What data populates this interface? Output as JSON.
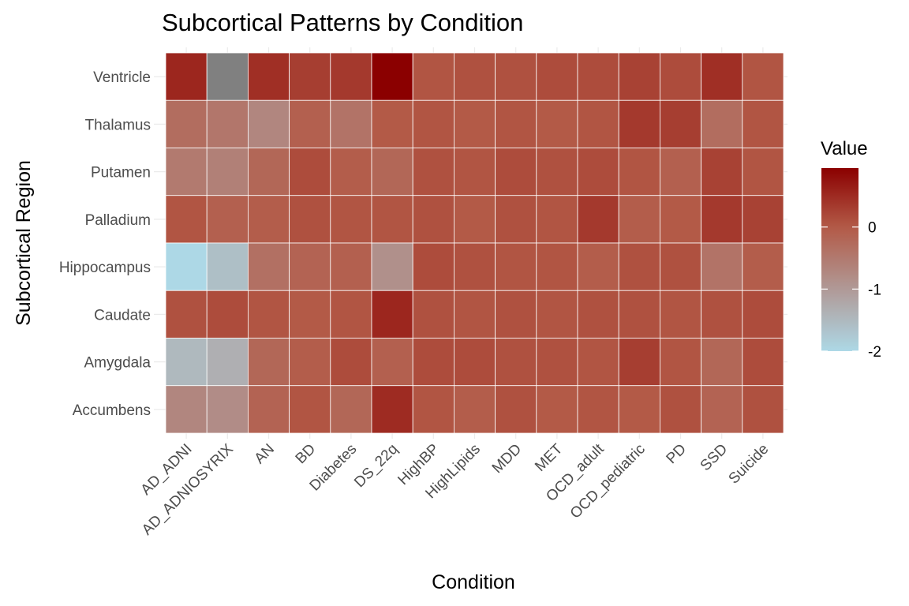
{
  "chart_data": {
    "type": "heatmap",
    "title": "Subcortical Patterns by Condition",
    "xlabel": "Condition",
    "ylabel": "Subcortical Region",
    "x": [
      "AD_ADNI",
      "AD_ADNIOSYRIX",
      "AN",
      "BD",
      "Diabetes",
      "DS_22q",
      "HighBP",
      "HighLipids",
      "MDD",
      "MET",
      "OCD_adult",
      "OCD_pediatric",
      "PD",
      "SSD",
      "Suicide"
    ],
    "y": [
      "Ventricle",
      "Thalamus",
      "Putamen",
      "Palladium",
      "Hippocampus",
      "Caudate",
      "Amygdala",
      "Accumbens"
    ],
    "values": [
      [
        0.55,
        null,
        0.45,
        0.3,
        0.35,
        0.95,
        0.05,
        0.1,
        0.1,
        0.15,
        0.15,
        0.25,
        0.15,
        0.45,
        0.05
      ],
      [
        -0.3,
        -0.45,
        -0.7,
        -0.1,
        -0.4,
        0.0,
        0.05,
        0.0,
        0.05,
        0.0,
        0.05,
        0.35,
        0.3,
        -0.3,
        0.05
      ],
      [
        -0.5,
        -0.6,
        -0.2,
        0.15,
        -0.05,
        -0.2,
        0.1,
        0.05,
        0.15,
        0.1,
        0.15,
        0.05,
        -0.1,
        0.25,
        0.05
      ],
      [
        0.05,
        -0.1,
        -0.05,
        0.1,
        0.05,
        0.05,
        0.1,
        0.0,
        0.1,
        0.05,
        0.35,
        -0.05,
        0.0,
        0.35,
        0.25
      ],
      [
        -2.0,
        -1.6,
        -0.35,
        -0.15,
        -0.1,
        -0.85,
        0.15,
        0.1,
        0.05,
        0.05,
        -0.05,
        0.1,
        0.1,
        -0.4,
        -0.05
      ],
      [
        0.1,
        0.15,
        0.05,
        0.0,
        0.05,
        0.55,
        0.1,
        0.05,
        0.1,
        0.05,
        0.1,
        0.1,
        0.05,
        0.1,
        0.15
      ],
      [
        -1.5,
        -1.35,
        -0.2,
        -0.05,
        0.15,
        -0.1,
        0.15,
        0.15,
        0.1,
        0.1,
        0.05,
        0.3,
        0.05,
        -0.2,
        0.15
      ],
      [
        -0.7,
        -0.8,
        -0.15,
        0.05,
        -0.2,
        0.5,
        0.05,
        -0.05,
        0.1,
        0.0,
        0.05,
        0.0,
        0.1,
        -0.15,
        0.1
      ]
    ],
    "missing_color": "#808080",
    "color_scale": {
      "low": "#add8e6",
      "mid": "#b35a47",
      "high": "#8b0000",
      "min": -2,
      "max": 0.95
    },
    "legend": {
      "title": "Value",
      "ticks": [
        0,
        -1,
        -2
      ],
      "position": "right"
    },
    "grid": true
  }
}
